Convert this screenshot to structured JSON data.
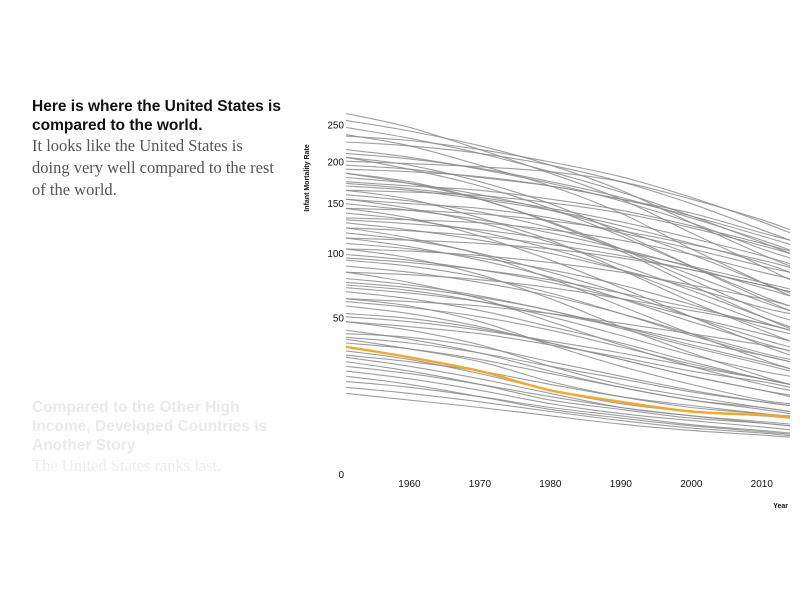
{
  "steps": [
    {
      "title": "Here is where the United States is compared to the world.",
      "body": "It looks like the United States is doing very well compared to the rest of the world."
    },
    {
      "title": "Compared to the Other High Income, Developed Countries is Another Story",
      "body": "The United States ranks last."
    }
  ],
  "chart_data": {
    "type": "line",
    "title": "",
    "xlabel": "Year",
    "ylabel": "Infant Mortality Rate",
    "x_ticks": [
      1960,
      1970,
      1980,
      1990,
      2000,
      2010
    ],
    "y_ticks": [
      0,
      50,
      100,
      150,
      200,
      250
    ],
    "y_scale": "sqrt",
    "xlim": [
      1951,
      2014
    ],
    "ylim": [
      0,
      280
    ],
    "grid": false,
    "highlight_color": "#f0a830",
    "background_color": "#8c8c8c",
    "highlight_series": {
      "x": [
        1951,
        1960,
        1970,
        1980,
        1990,
        2000,
        2010,
        2014
      ],
      "values": [
        31,
        26,
        20,
        13,
        9.5,
        7,
        6.2,
        5.8
      ]
    },
    "background_series": [
      {
        "values": [
          29,
          25,
          19,
          13,
          9,
          7,
          6,
          5.5
        ]
      },
      {
        "values": [
          24,
          20,
          15,
          10,
          7.5,
          5.5,
          4.5,
          4
        ]
      },
      {
        "values": [
          20,
          17,
          13,
          9,
          6.5,
          5,
          3.8,
          3.3
        ]
      },
      {
        "values": [
          18,
          15,
          11,
          7.5,
          5.5,
          4,
          3,
          2.6
        ]
      },
      {
        "values": [
          26,
          22,
          17,
          12,
          8,
          6,
          4.8,
          4.3
        ]
      },
      {
        "values": [
          35,
          30,
          24,
          16,
          11,
          8,
          6.5,
          6
        ]
      },
      {
        "values": [
          45,
          40,
          32,
          22,
          15,
          11,
          8,
          7
        ]
      },
      {
        "values": [
          60,
          55,
          45,
          32,
          22,
          15,
          10,
          9
        ]
      },
      {
        "values": [
          80,
          72,
          60,
          45,
          32,
          22,
          15,
          13
        ]
      },
      {
        "values": [
          100,
          92,
          78,
          60,
          42,
          28,
          18,
          15
        ]
      },
      {
        "values": [
          120,
          110,
          95,
          75,
          55,
          38,
          25,
          21
        ]
      },
      {
        "values": [
          140,
          130,
          112,
          90,
          68,
          48,
          32,
          27
        ]
      },
      {
        "values": [
          160,
          150,
          130,
          108,
          82,
          58,
          40,
          34
        ]
      },
      {
        "values": [
          180,
          170,
          150,
          125,
          98,
          70,
          48,
          41
        ]
      },
      {
        "values": [
          200,
          190,
          170,
          145,
          115,
          85,
          60,
          52
        ]
      },
      {
        "values": [
          230,
          215,
          190,
          165,
          135,
          100,
          72,
          62
        ]
      },
      {
        "values": [
          260,
          240,
          210,
          180,
          150,
          115,
          85,
          74
        ]
      },
      {
        "values": [
          150,
          145,
          140,
          130,
          115,
          100,
          85,
          80
        ]
      },
      {
        "values": [
          130,
          128,
          125,
          118,
          108,
          95,
          80,
          75
        ]
      },
      {
        "values": [
          110,
          108,
          105,
          100,
          92,
          82,
          70,
          65
        ]
      },
      {
        "values": [
          170,
          165,
          160,
          150,
          138,
          122,
          105,
          98
        ]
      },
      {
        "values": [
          190,
          185,
          175,
          165,
          150,
          135,
          115,
          108
        ]
      },
      {
        "values": [
          95,
          90,
          82,
          72,
          60,
          48,
          38,
          34
        ]
      },
      {
        "values": [
          75,
          70,
          62,
          52,
          42,
          32,
          24,
          21
        ]
      },
      {
        "values": [
          55,
          50,
          42,
          33,
          25,
          18,
          13,
          11
        ]
      },
      {
        "values": [
          40,
          35,
          28,
          20,
          14,
          10,
          7.5,
          6.5
        ]
      },
      {
        "values": [
          65,
          60,
          52,
          42,
          33,
          24,
          17,
          15
        ]
      },
      {
        "values": [
          85,
          80,
          72,
          62,
          50,
          38,
          28,
          25
        ]
      },
      {
        "values": [
          105,
          100,
          92,
          82,
          70,
          56,
          42,
          38
        ]
      },
      {
        "values": [
          125,
          118,
          108,
          96,
          82,
          68,
          54,
          50
        ]
      },
      {
        "values": [
          145,
          138,
          128,
          115,
          100,
          84,
          68,
          62
        ]
      },
      {
        "values": [
          165,
          160,
          150,
          138,
          122,
          105,
          88,
          80
        ]
      },
      {
        "values": [
          210,
          200,
          185,
          168,
          148,
          125,
          100,
          92
        ]
      },
      {
        "values": [
          240,
          225,
          205,
          182,
          158,
          132,
          106,
          96
        ]
      },
      {
        "values": [
          175,
          168,
          155,
          138,
          118,
          95,
          72,
          64
        ]
      },
      {
        "values": [
          155,
          148,
          136,
          120,
          100,
          78,
          58,
          52
        ]
      },
      {
        "values": [
          135,
          128,
          116,
          100,
          82,
          62,
          45,
          40
        ]
      },
      {
        "values": [
          115,
          108,
          96,
          80,
          64,
          48,
          35,
          31
        ]
      },
      {
        "values": [
          90,
          85,
          76,
          64,
          50,
          37,
          27,
          24
        ]
      },
      {
        "values": [
          70,
          66,
          58,
          48,
          37,
          27,
          20,
          18
        ]
      },
      {
        "values": [
          50,
          47,
          41,
          33,
          25,
          18,
          13,
          11.5
        ]
      },
      {
        "values": [
          38,
          36,
          31,
          24,
          18,
          13,
          9.5,
          8.5
        ]
      },
      {
        "values": [
          33,
          30,
          25,
          19,
          14,
          10,
          8,
          7
        ]
      },
      {
        "values": [
          22,
          19,
          15,
          11,
          8,
          6,
          4.5,
          4
        ]
      },
      {
        "values": [
          16,
          14,
          11,
          8,
          6,
          4.2,
          3.2,
          2.8
        ]
      },
      {
        "values": [
          14,
          12,
          9.5,
          7,
          5,
          3.6,
          2.8,
          2.4
        ]
      },
      {
        "values": [
          12,
          10,
          8,
          6,
          4.3,
          3.2,
          2.5,
          2.2
        ]
      },
      {
        "values": [
          220,
          215,
          205,
          190,
          170,
          145,
          118,
          108
        ]
      },
      {
        "values": [
          185,
          182,
          176,
          165,
          150,
          132,
          112,
          104
        ]
      },
      {
        "values": [
          160,
          158,
          154,
          146,
          135,
          120,
          103,
          96
        ]
      },
      {
        "values": [
          140,
          138,
          134,
          127,
          117,
          104,
          90,
          84
        ]
      },
      {
        "values": [
          250,
          235,
          215,
          190,
          160,
          125,
          95,
          85
        ]
      },
      {
        "values": [
          200,
          185,
          165,
          140,
          112,
          85,
          62,
          55
        ]
      },
      {
        "values": [
          180,
          168,
          150,
          126,
          100,
          74,
          52,
          46
        ]
      },
      {
        "values": [
          60,
          58,
          55,
          50,
          44,
          38,
          32,
          29
        ]
      },
      {
        "values": [
          80,
          78,
          74,
          68,
          60,
          52,
          44,
          40
        ]
      },
      {
        "values": [
          100,
          98,
          94,
          88,
          80,
          70,
          60,
          55
        ]
      },
      {
        "values": [
          120,
          117,
          112,
          104,
          94,
          82,
          70,
          65
        ]
      },
      {
        "values": [
          45,
          42,
          38,
          32,
          26,
          20,
          16,
          14
        ]
      },
      {
        "values": [
          58,
          54,
          48,
          40,
          31,
          23,
          17,
          15
        ]
      },
      {
        "values": [
          72,
          68,
          61,
          52,
          41,
          31,
          23,
          20
        ]
      },
      {
        "values": [
          195,
          192,
          188,
          182,
          170,
          150,
          128,
          118
        ]
      },
      {
        "values": [
          150,
          140,
          125,
          106,
          86,
          66,
          48,
          42
        ]
      },
      {
        "values": [
          110,
          102,
          90,
          76,
          60,
          45,
          33,
          29
        ]
      },
      {
        "values": [
          228,
          222,
          210,
          194,
          176,
          152,
          126,
          115
        ]
      },
      {
        "values": [
          205,
          198,
          186,
          170,
          152,
          130,
          108,
          99
        ]
      },
      {
        "values": [
          168,
          162,
          152,
          140,
          126,
          110,
          94,
          87
        ]
      },
      {
        "values": [
          128,
          124,
          118,
          109,
          98,
          85,
          72,
          67
        ]
      },
      {
        "values": [
          92,
          88,
          82,
          74,
          64,
          54,
          44,
          40
        ]
      },
      {
        "values": [
          68,
          64,
          58,
          50,
          42,
          34,
          27,
          24
        ]
      },
      {
        "values": [
          48,
          45,
          40,
          34,
          28,
          22,
          17,
          15
        ]
      },
      {
        "values": [
          36,
          33,
          28,
          22,
          17,
          12.5,
          9.5,
          8.5
        ]
      },
      {
        "values": [
          27,
          24,
          20,
          15,
          11,
          8.5,
          6.5,
          5.8
        ]
      }
    ]
  }
}
